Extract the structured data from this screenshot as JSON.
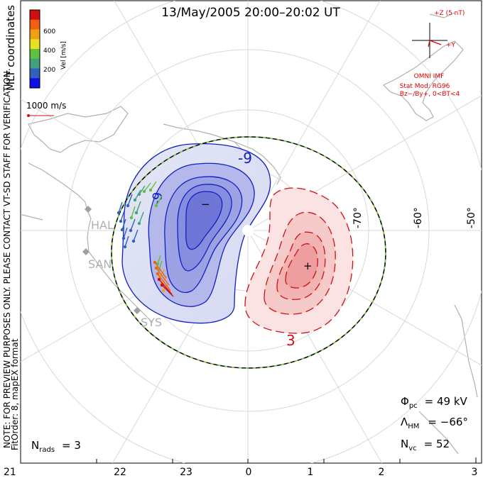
{
  "title": "13/May/2005 20:00–20:02 UT",
  "colorbar": {
    "label": "Vel [m/s]",
    "ticks": [
      "600",
      "400",
      "200"
    ],
    "colors": [
      "#d01010",
      "#f06010",
      "#f0a010",
      "#e8e020",
      "#60c040",
      "#40a080",
      "#3060c0",
      "#1010e0"
    ]
  },
  "coord_label": "MLT coordinates",
  "scale_vector": "1000 m/s",
  "warning_text": "NOTE: FOR PREVIEW PURPOSES ONLY. PLEASE CONTACT VT-SD STAFF FOR VERIFICATION.",
  "fit_text": "FitOrder: 8, mapEX format",
  "imf": {
    "plus_z": "+Z (5 nT)",
    "plus_y": "+Y",
    "source": "OMNI IMF",
    "stat_mod": "Stat Mod: RG96",
    "condition": "Bz−/By+, 0<BT<4"
  },
  "stations": [
    "HAL",
    "SAN",
    "SYS"
  ],
  "lat_labels": [
    "-70°",
    "-60°",
    "-50°"
  ],
  "contours": {
    "negative_label": "-9",
    "negative_label2": "-9",
    "positive_label": "3",
    "min_marker": "−",
    "max_marker": "+"
  },
  "stats": {
    "phi_main": "Φ",
    "phi_sub": "pc",
    "phi_value": "= 49 kV",
    "lambda_main": "Λ",
    "lambda_sub": "HM",
    "lambda_value": "= −66°",
    "nvc_main": "N",
    "nvc_sub": "vc",
    "nvc_value": "= 52",
    "nrads_main": "N",
    "nrads_sub": "rads",
    "nrads_value": "= 3"
  },
  "mlt_ticks": [
    "21",
    "22",
    "23",
    "0",
    "1",
    "2",
    "3"
  ]
}
